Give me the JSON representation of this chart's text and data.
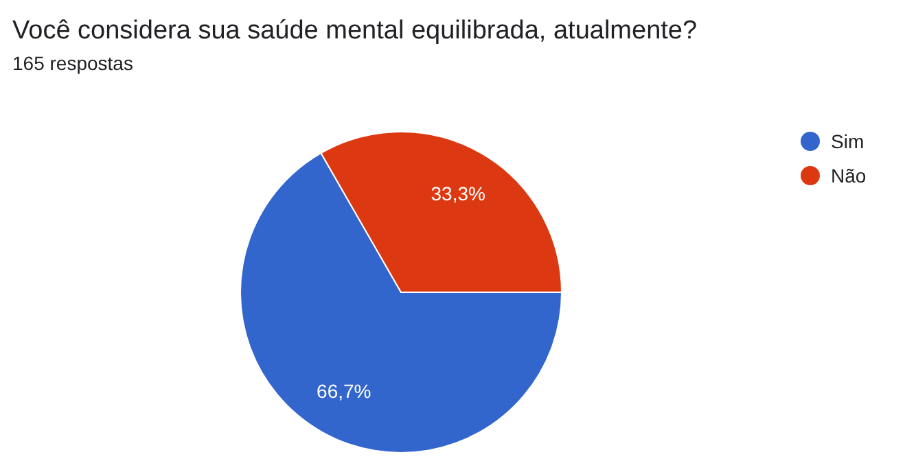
{
  "chart_data": {
    "type": "pie",
    "title": "Você considera sua saúde mental equilibrada, atualmente?",
    "subtitle": "165 respostas",
    "categories": [
      "Sim",
      "Não"
    ],
    "values": [
      66.7,
      33.3
    ],
    "colors": [
      "#3366cc",
      "#dc3912"
    ],
    "value_labels": [
      "66,7%",
      "33,3%"
    ],
    "legend": "top right"
  }
}
